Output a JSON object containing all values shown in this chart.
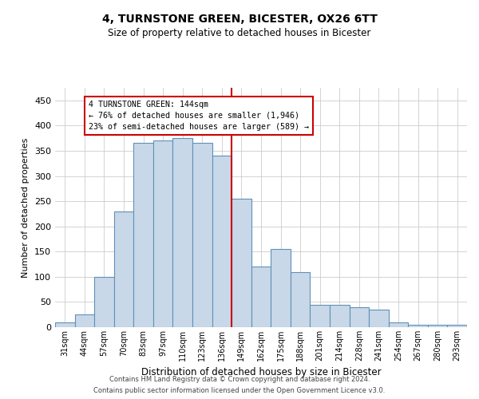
{
  "title1": "4, TURNSTONE GREEN, BICESTER, OX26 6TT",
  "title2": "Size of property relative to detached houses in Bicester",
  "xlabel": "Distribution of detached houses by size in Bicester",
  "ylabel": "Number of detached properties",
  "categories": [
    "31sqm",
    "44sqm",
    "57sqm",
    "70sqm",
    "83sqm",
    "97sqm",
    "110sqm",
    "123sqm",
    "136sqm",
    "149sqm",
    "162sqm",
    "175sqm",
    "188sqm",
    "201sqm",
    "214sqm",
    "228sqm",
    "241sqm",
    "254sqm",
    "267sqm",
    "280sqm",
    "293sqm"
  ],
  "values": [
    10,
    25,
    100,
    230,
    365,
    370,
    375,
    365,
    340,
    255,
    120,
    155,
    110,
    45,
    45,
    40,
    35,
    10,
    5,
    5,
    5
  ],
  "bar_color": "#c8d8e8",
  "bar_edge_color": "#6090b8",
  "vline_x_index": 8.5,
  "vline_color": "#cc0000",
  "annotation_line1": "4 TURNSTONE GREEN: 144sqm",
  "annotation_line2": "← 76% of detached houses are smaller (1,946)",
  "annotation_line3": "23% of semi-detached houses are larger (589) →",
  "annotation_box_color": "#cc0000",
  "ylim": [
    0,
    475
  ],
  "yticks": [
    0,
    50,
    100,
    150,
    200,
    250,
    300,
    350,
    400,
    450
  ],
  "bg_color": "#ffffff",
  "footer1": "Contains HM Land Registry data © Crown copyright and database right 2024.",
  "footer2": "Contains public sector information licensed under the Open Government Licence v3.0."
}
